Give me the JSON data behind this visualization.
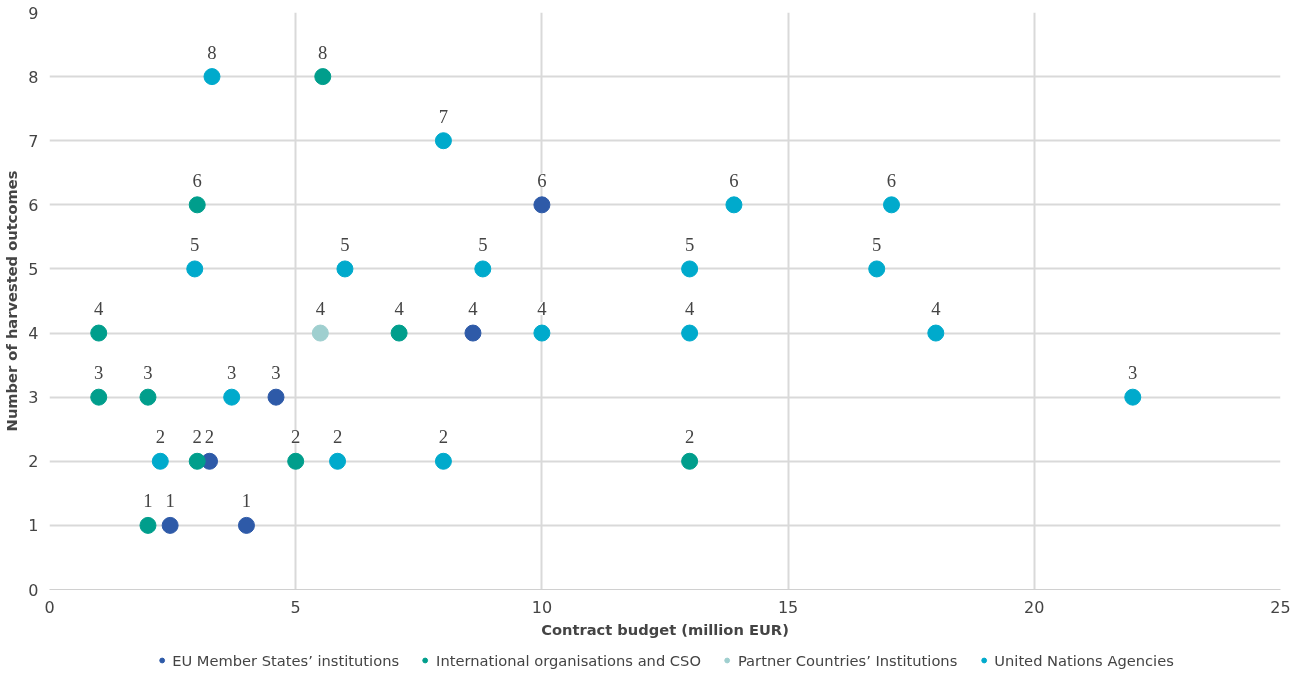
{
  "chart_data": {
    "type": "scatter",
    "xlabel": "Contract budget (million EUR)",
    "ylabel": "Number of harvested outcomes",
    "xlim": [
      0,
      25
    ],
    "xticks": [
      0,
      5,
      10,
      15,
      20,
      25
    ],
    "ylim": [
      0,
      9
    ],
    "yticks": [
      0,
      1,
      2,
      3,
      4,
      5,
      6,
      7,
      8,
      9
    ],
    "grid": true,
    "legend": "bottom",
    "marker": "circle",
    "data_labels": true,
    "series": [
      {
        "name": "EU Member States’ institutions",
        "color": "#2e5aa8",
        "x": [
          3.25,
          2.45,
          4.0,
          4.6,
          10,
          8.6
        ],
        "values": [
          2,
          1,
          1,
          3,
          6,
          4
        ]
      },
      {
        "name": "International organisations and CSO",
        "color": "#009e8c",
        "x": [
          1.0,
          1.0,
          2.0,
          3.0,
          2.0,
          3.0,
          5.55,
          5.0,
          7.1,
          13.0
        ],
        "values": [
          4,
          3,
          3,
          2,
          1,
          6,
          8,
          2,
          4,
          2
        ]
      },
      {
        "name": "Partner Countries’ Institutions",
        "color": "#9fcfcf",
        "x": [
          5.5
        ],
        "values": [
          4
        ]
      },
      {
        "name": "United Nations Agencies",
        "color": "#00aacc",
        "x": [
          3.3,
          2.95,
          2.25,
          3.7,
          6.0,
          5.85,
          8.0,
          8.8,
          8.0,
          10,
          13,
          13,
          13.9,
          16.8,
          17.1,
          18,
          22
        ],
        "values": [
          8,
          5,
          2,
          3,
          5,
          2,
          7,
          5,
          2,
          4,
          5,
          4,
          6,
          5,
          6,
          4,
          3
        ]
      }
    ]
  }
}
